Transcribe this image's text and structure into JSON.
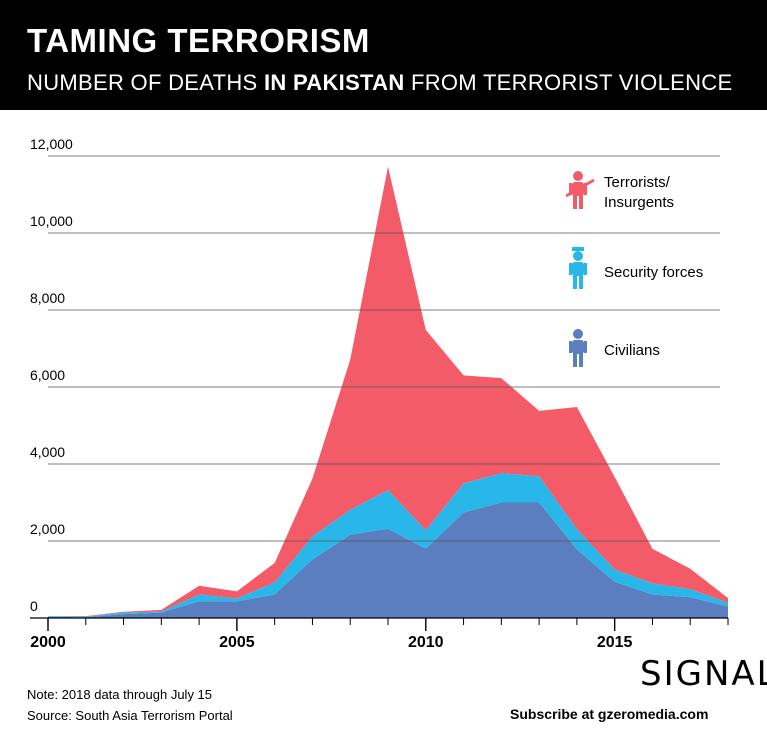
{
  "header": {
    "title": "TAMING TERRORISM",
    "subtitle_pre": "NUMBER OF DEATHS ",
    "subtitle_bold": "IN PAKISTAN",
    "subtitle_post": " FROM TERRORIST VIOLENCE"
  },
  "footer": {
    "note": "Note: 2018 data through July 15",
    "source": "Source: South Asia Terrorism Portal",
    "brand": "SIGNAL",
    "subscribe": "Subscribe at gzeromedia.com"
  },
  "colors": {
    "terrorists": "#f45b69",
    "security": "#29b6e8",
    "civilians": "#5a7ec0",
    "grid": "#555555"
  },
  "chart_data": {
    "type": "area",
    "stacked": true,
    "x": [
      2000,
      2001,
      2002,
      2003,
      2004,
      2005,
      2006,
      2007,
      2008,
      2009,
      2010,
      2011,
      2012,
      2013,
      2014,
      2015,
      2016,
      2017,
      2018
    ],
    "x_tick_labels": [
      "2000",
      "2005",
      "2010",
      "2015"
    ],
    "x_ticks": [
      2000,
      2005,
      2010,
      2015
    ],
    "y_ticks": [
      0,
      2000,
      4000,
      6000,
      8000,
      10000,
      12000
    ],
    "y_tick_labels": [
      "0",
      "2,000",
      "4,000",
      "6,000",
      "8,000",
      "10,000",
      "12,000"
    ],
    "ylim": [
      0,
      12000
    ],
    "xlim": [
      2000,
      2018
    ],
    "grid": true,
    "legend_position": "top-right",
    "series": [
      {
        "name": "Civilians",
        "key": "civilians",
        "values": [
          30,
          20,
          100,
          140,
          430,
          430,
          610,
          1520,
          2160,
          2320,
          1800,
          2740,
          3000,
          3000,
          1780,
          940,
          610,
          540,
          300
        ]
      },
      {
        "name": "Security forces",
        "key": "security",
        "values": [
          20,
          20,
          40,
          30,
          180,
          80,
          320,
          600,
          650,
          1000,
          480,
          760,
          760,
          680,
          530,
          320,
          290,
          210,
          100
        ]
      },
      {
        "name": "Terrorists/\nInsurgents",
        "key": "terrorists",
        "values": [
          0,
          10,
          20,
          40,
          230,
          180,
          500,
          1500,
          3900,
          8400,
          5200,
          2800,
          2470,
          1700,
          3170,
          2400,
          900,
          530,
          120
        ]
      }
    ]
  }
}
